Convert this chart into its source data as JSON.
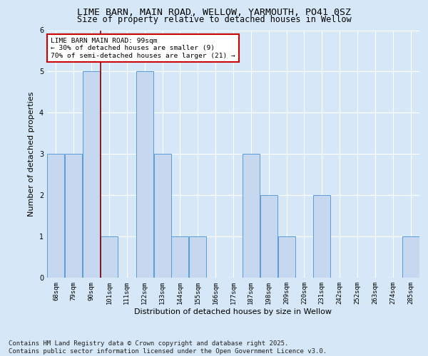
{
  "title_line1": "LIME BARN, MAIN ROAD, WELLOW, YARMOUTH, PO41 0SZ",
  "title_line2": "Size of property relative to detached houses in Wellow",
  "xlabel": "Distribution of detached houses by size in Wellow",
  "ylabel": "Number of detached properties",
  "categories": [
    "68sqm",
    "79sqm",
    "90sqm",
    "101sqm",
    "111sqm",
    "122sqm",
    "133sqm",
    "144sqm",
    "155sqm",
    "166sqm",
    "177sqm",
    "187sqm",
    "198sqm",
    "209sqm",
    "220sqm",
    "231sqm",
    "242sqm",
    "252sqm",
    "263sqm",
    "274sqm",
    "285sqm"
  ],
  "values": [
    3,
    3,
    5,
    1,
    0,
    5,
    3,
    1,
    1,
    0,
    0,
    3,
    2,
    1,
    0,
    2,
    0,
    0,
    0,
    0,
    1
  ],
  "bar_color": "#c5d8f0",
  "bar_edge_color": "#5b9bd5",
  "bar_linewidth": 0.7,
  "vline_x_index": 2,
  "vline_color": "#8b0000",
  "ylim": [
    0,
    6
  ],
  "yticks": [
    0,
    1,
    2,
    3,
    4,
    5,
    6
  ],
  "annotation_text": "LIME BARN MAIN ROAD: 99sqm\n← 30% of detached houses are smaller (9)\n70% of semi-detached houses are larger (21) →",
  "annotation_box_facecolor": "#ffffff",
  "annotation_box_edgecolor": "#cc0000",
  "footer_text": "Contains HM Land Registry data © Crown copyright and database right 2025.\nContains public sector information licensed under the Open Government Licence v3.0.",
  "background_color": "#d6e8f7",
  "plot_bg_color": "#d6e8f7",
  "grid_color": "#ffffff",
  "title_fontsize": 9.5,
  "subtitle_fontsize": 8.5,
  "tick_fontsize": 6.5,
  "ylabel_fontsize": 8,
  "xlabel_fontsize": 8,
  "annotation_fontsize": 6.8,
  "footer_fontsize": 6.5
}
